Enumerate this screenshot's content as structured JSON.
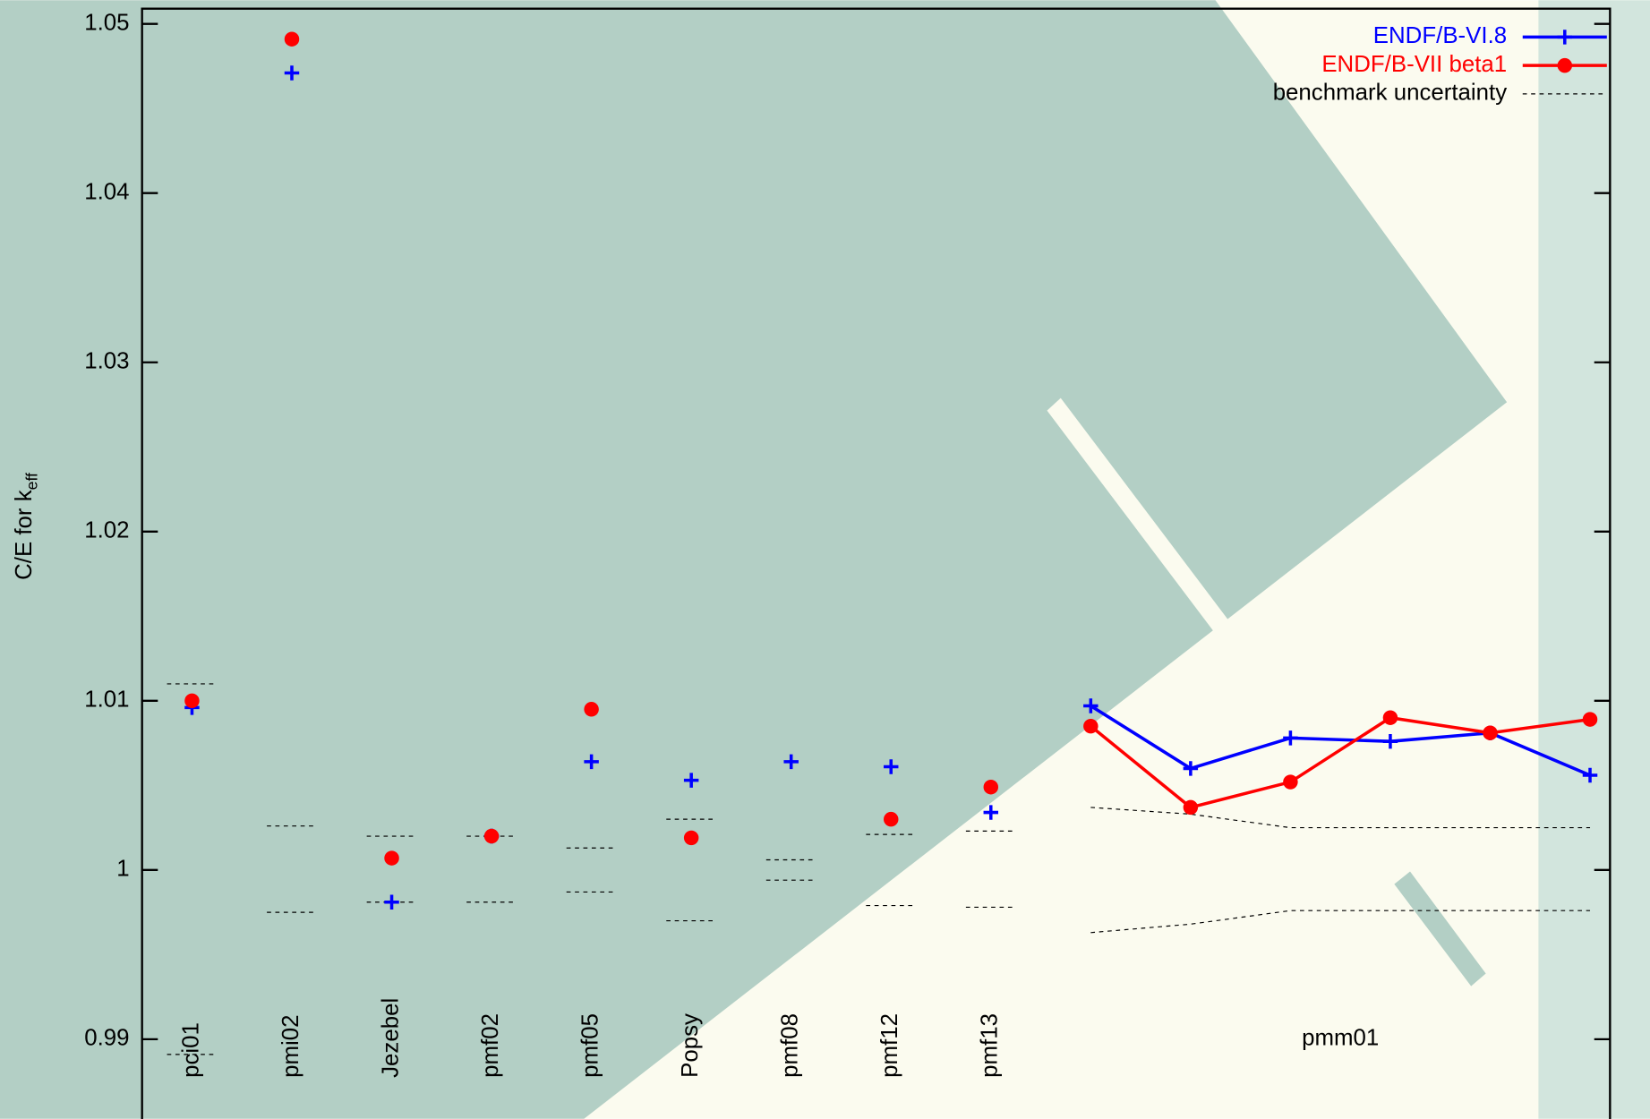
{
  "chart_data": {
    "type": "scatter",
    "ylabel": "C/E for k",
    "ylabel_sub": "eff",
    "categories": [
      "pci01",
      "pmi02",
      "Jezebel",
      "pmf02",
      "pmf05",
      "Popsy",
      "pmf08",
      "pmf12",
      "pmf13",
      null,
      null,
      null,
      null,
      null,
      null
    ],
    "x": [
      1,
      2,
      3,
      4,
      5,
      6,
      7,
      8,
      9,
      10,
      11,
      12,
      13,
      14,
      15
    ],
    "xlim": [
      0.5,
      15.2
    ],
    "ylim": [
      0.9853,
      1.0509
    ],
    "yticks": [
      0.99,
      1,
      1.01,
      1.02,
      1.03,
      1.04,
      1.05
    ],
    "legend": "upper right",
    "series": [
      {
        "name": "ENDF/B-VI.8",
        "color": "#0000ff",
        "marker": "plus",
        "values": [
          1.0096,
          1.0471,
          0.9981,
          1.002,
          1.0064,
          1.0053,
          1.0064,
          1.0061,
          1.0034,
          1.0097,
          1.006,
          1.0078,
          1.0076,
          1.0081,
          1.0056
        ]
      },
      {
        "name": "ENDF/B-VII beta1",
        "color": "#ff0000",
        "marker": "circle",
        "values": [
          1.01,
          1.0491,
          1.0007,
          1.002,
          1.0095,
          1.0019,
          null,
          1.003,
          1.0049,
          1.0085,
          1.0037,
          1.0052,
          1.009,
          1.0081,
          1.0089
        ]
      }
    ],
    "uncertainty": {
      "name": "benchmark uncertainty",
      "color": "#000000",
      "upper": [
        1.011,
        1.0026,
        1.002,
        1.002,
        1.0013,
        1.003,
        1.0006,
        1.0021,
        1.0023,
        1.0037,
        1.0033,
        1.0025,
        1.0025,
        1.0025,
        1.0025
      ],
      "lower": [
        0.9891,
        0.9975,
        0.9981,
        0.9981,
        0.9987,
        0.997,
        0.9994,
        0.9979,
        0.9978,
        0.9963,
        0.9968,
        0.9976,
        0.9976,
        0.9976,
        0.9976
      ]
    },
    "annotations": [
      {
        "text": "pmm01",
        "x": 12.5,
        "y": 0.99
      }
    ]
  }
}
